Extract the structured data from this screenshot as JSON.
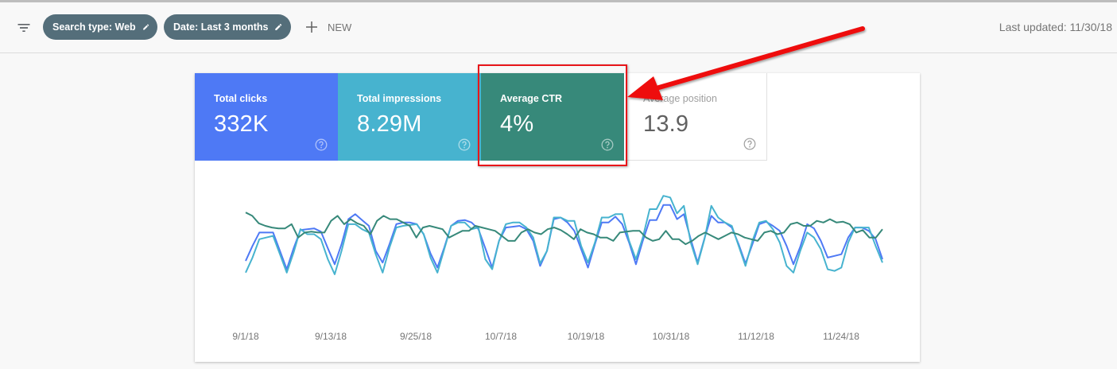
{
  "toolbar": {
    "filter_icon": "filter-list-icon",
    "chips": [
      {
        "label": "Search type: Web",
        "icon": "pencil-icon"
      },
      {
        "label": "Date: Last 3 months",
        "icon": "pencil-icon"
      }
    ],
    "new_button": {
      "label": "NEW",
      "icon": "plus-icon"
    },
    "last_updated": "Last updated: 11/30/18"
  },
  "metrics": [
    {
      "label": "Total clicks",
      "value": "332K",
      "color": "#4e79f5",
      "selected": true
    },
    {
      "label": "Total impressions",
      "value": "8.29M",
      "color": "#47b3cf",
      "selected": true
    },
    {
      "label": "Average CTR",
      "value": "4%",
      "color": "#37897a",
      "selected": true
    },
    {
      "label": "Average position",
      "value": "13.9",
      "color": "#ffffff",
      "selected": false
    }
  ],
  "annotation": {
    "box_color": "#e8161a",
    "target": "Average CTR"
  },
  "chart_data": {
    "type": "line",
    "title": "",
    "xlabel": "",
    "ylabel": "",
    "grid": false,
    "legend": "none (metric tiles act as legend)",
    "x_tick_labels": [
      "9/1/18",
      "9/13/18",
      "9/25/18",
      "10/7/18",
      "10/19/18",
      "10/31/18",
      "11/12/18",
      "11/24/18"
    ],
    "x_range": [
      "9/1/18",
      "11/30/18"
    ],
    "note": "values are relative plot heights (0-100, higher = larger) read from pixel positions; y-axes hidden",
    "series": [
      {
        "name": "Total clicks",
        "color": "#4e79f5",
        "values": [
          18,
          36,
          52,
          52,
          52,
          30,
          8,
          33,
          55,
          56,
          57,
          53,
          33,
          14,
          38,
          68,
          74,
          67,
          60,
          30,
          16,
          38,
          62,
          64,
          64,
          62,
          50,
          27,
          10,
          34,
          60,
          66,
          67,
          64,
          56,
          33,
          10,
          42,
          58,
          59,
          60,
          56,
          42,
          12,
          30,
          68,
          70,
          64,
          54,
          32,
          10,
          38,
          64,
          64,
          71,
          62,
          40,
          14,
          42,
          67,
          67,
          85,
          85,
          68,
          74,
          44,
          16,
          45,
          72,
          64,
          64,
          58,
          38,
          15,
          38,
          62,
          65,
          60,
          54,
          36,
          14,
          35,
          62,
          57,
          42,
          22,
          24,
          26,
          46,
          58,
          58,
          54,
          44,
          20
        ]
      },
      {
        "name": "Total impressions",
        "color": "#47b3cf",
        "values": [
          4,
          22,
          44,
          46,
          48,
          26,
          4,
          28,
          56,
          50,
          50,
          44,
          20,
          2,
          30,
          62,
          62,
          56,
          52,
          26,
          4,
          34,
          58,
          60,
          61,
          62,
          50,
          22,
          4,
          32,
          60,
          64,
          64,
          56,
          58,
          20,
          8,
          42,
          62,
          64,
          64,
          58,
          46,
          15,
          30,
          70,
          70,
          66,
          66,
          36,
          16,
          40,
          70,
          70,
          74,
          74,
          42,
          20,
          46,
          80,
          80,
          96,
          94,
          75,
          84,
          40,
          14,
          44,
          84,
          70,
          64,
          60,
          36,
          12,
          42,
          64,
          66,
          56,
          40,
          12,
          4,
          30,
          52,
          46,
          32,
          8,
          6,
          10,
          40,
          58,
          58,
          58,
          36,
          16
        ]
      },
      {
        "name": "Average CTR",
        "color": "#37897a",
        "values": [
          76,
          72,
          63,
          60,
          58,
          57,
          57,
          62,
          46,
          52,
          53,
          52,
          52,
          66,
          72,
          62,
          68,
          63,
          60,
          50,
          66,
          72,
          68,
          68,
          64,
          60,
          46,
          58,
          60,
          58,
          56,
          46,
          50,
          54,
          54,
          60,
          58,
          56,
          54,
          48,
          42,
          42,
          52,
          56,
          52,
          50,
          56,
          58,
          55,
          50,
          44,
          56,
          52,
          50,
          46,
          46,
          42,
          52,
          53,
          54,
          54,
          46,
          42,
          44,
          54,
          44,
          44,
          38,
          42,
          48,
          52,
          48,
          44,
          48,
          52,
          50,
          46,
          44,
          42,
          52,
          54,
          50,
          52,
          62,
          64,
          60,
          60,
          66,
          64,
          68,
          64,
          65,
          62,
          52,
          55,
          46,
          46,
          56
        ]
      }
    ]
  }
}
